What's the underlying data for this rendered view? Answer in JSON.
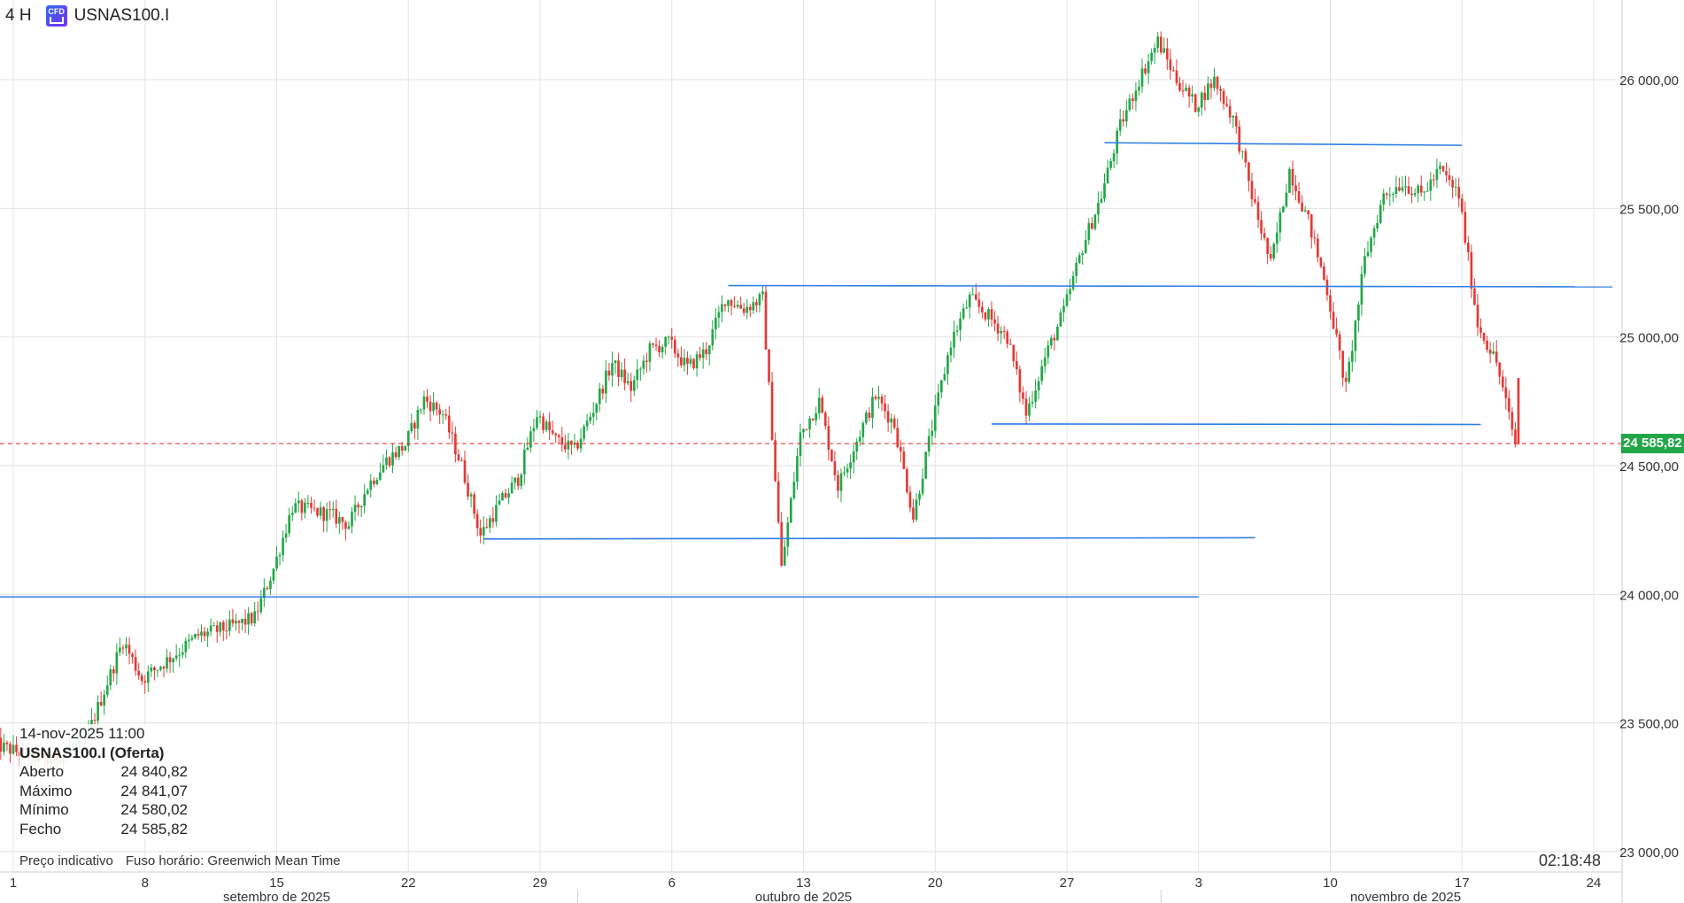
{
  "header": {
    "timeframe": "4 H",
    "cfd_badge": "CFD",
    "symbol": "USNAS100.I"
  },
  "info": {
    "datetime": "14-nov-2025 11:00",
    "symbol_label": "USNAS100.I (Oferta)",
    "rows": [
      {
        "label": "Aberto",
        "value": "24 840,82"
      },
      {
        "label": "Máximo",
        "value": "24 841,07"
      },
      {
        "label": "Mínimo",
        "value": "24 580,02"
      },
      {
        "label": "Fecho",
        "value": "24 585,82"
      }
    ]
  },
  "footer": {
    "note": "Preço indicativo",
    "timezone": "Fuso horário: Greenwich Mean Time",
    "clock": "02:18:48"
  },
  "colors": {
    "up": "#22a748",
    "down": "#e53935",
    "trendline": "#2f7ee3",
    "grid": "#e3e3e3",
    "price_line": "#e53935"
  },
  "chart_data": {
    "type": "candlestick",
    "timeframe": "4 H",
    "ylim": [
      22900,
      26300
    ],
    "y_ticks": [
      {
        "value": 23000,
        "label": "23 000,00"
      },
      {
        "value": 23500,
        "label": "23 500,00"
      },
      {
        "value": 24000,
        "label": "24 000,00"
      },
      {
        "value": 24500,
        "label": "24 500,00"
      },
      {
        "value": 25000,
        "label": "25 000,00"
      },
      {
        "value": 25500,
        "label": "25 500,00"
      },
      {
        "value": 26000,
        "label": "26 000,00"
      }
    ],
    "x_start": "2025-09-01",
    "x_end": "2025-11-24",
    "x_ticks": [
      {
        "date": "2025-09-01",
        "label": "1"
      },
      {
        "date": "2025-09-08",
        "label": "8"
      },
      {
        "date": "2025-09-15",
        "label": "15"
      },
      {
        "date": "2025-09-22",
        "label": "22"
      },
      {
        "date": "2025-09-29",
        "label": "29"
      },
      {
        "date": "2025-10-06",
        "label": "6"
      },
      {
        "date": "2025-10-13",
        "label": "13"
      },
      {
        "date": "2025-10-20",
        "label": "20"
      },
      {
        "date": "2025-10-27",
        "label": "27"
      },
      {
        "date": "2025-11-03",
        "label": "3"
      },
      {
        "date": "2025-11-10",
        "label": "10"
      },
      {
        "date": "2025-11-17",
        "label": "17"
      },
      {
        "date": "2025-11-24",
        "label": "24"
      }
    ],
    "month_labels": [
      {
        "date": "2025-09-15",
        "label": "setembro de 2025"
      },
      {
        "date": "2025-10-13",
        "label": "outubro de 2025"
      },
      {
        "date": "2025-11-14",
        "label": "novembro de 2025"
      }
    ],
    "month_boundaries": [
      "2025-10-01",
      "2025-11-01"
    ],
    "current_price": {
      "value": 24585.82,
      "label": "24 585,82"
    },
    "trendlines": [
      {
        "from": [
          "2025-08-31",
          23990
        ],
        "to": [
          "2025-11-03",
          23990
        ]
      },
      {
        "from": [
          "2025-09-26",
          24215
        ],
        "to": [
          "2025-11-06",
          24220
        ]
      },
      {
        "from": [
          "2025-10-09",
          25200
        ],
        "to": [
          "2025-11-25",
          25195
        ]
      },
      {
        "from": [
          "2025-10-23",
          24662
        ],
        "to": [
          "2025-11-18",
          24660
        ]
      },
      {
        "from": [
          "2025-10-29",
          25755
        ],
        "to": [
          "2025-11-17",
          25745
        ]
      }
    ],
    "anchors": [
      [
        "2025-08-31",
        23420
      ],
      [
        "2025-09-03",
        23350
      ],
      [
        "2025-09-05",
        23430
      ],
      [
        "2025-09-07",
        23820
      ],
      [
        "2025-09-08",
        23670
      ],
      [
        "2025-09-10",
        23780
      ],
      [
        "2025-09-11",
        23840
      ],
      [
        "2025-09-13",
        23880
      ],
      [
        "2025-09-14",
        23910
      ],
      [
        "2025-09-15",
        24100
      ],
      [
        "2025-09-16",
        24340
      ],
      [
        "2025-09-18",
        24310
      ],
      [
        "2025-09-19",
        24270
      ],
      [
        "2025-09-20",
        24420
      ],
      [
        "2025-09-21",
        24520
      ],
      [
        "2025-09-22",
        24580
      ],
      [
        "2025-09-23",
        24760
      ],
      [
        "2025-09-24",
        24700
      ],
      [
        "2025-09-25",
        24500
      ],
      [
        "2025-09-26",
        24230
      ],
      [
        "2025-09-27",
        24350
      ],
      [
        "2025-09-28",
        24450
      ],
      [
        "2025-09-29",
        24700
      ],
      [
        "2025-09-30",
        24600
      ],
      [
        "2025-10-01",
        24560
      ],
      [
        "2025-10-02",
        24720
      ],
      [
        "2025-10-03",
        24900
      ],
      [
        "2025-10-04",
        24800
      ],
      [
        "2025-10-05",
        24950
      ],
      [
        "2025-10-06",
        24980
      ],
      [
        "2025-10-07",
        24880
      ],
      [
        "2025-10-08",
        24950
      ],
      [
        "2025-10-09",
        25150
      ],
      [
        "2025-10-10",
        25110
      ],
      [
        "2025-10-11",
        25150
      ],
      [
        "2025-10-12",
        24100
      ],
      [
        "2025-10-13",
        24620
      ],
      [
        "2025-10-14",
        24750
      ],
      [
        "2025-10-15",
        24420
      ],
      [
        "2025-10-16",
        24600
      ],
      [
        "2025-10-17",
        24770
      ],
      [
        "2025-10-18",
        24660
      ],
      [
        "2025-10-19",
        24300
      ],
      [
        "2025-10-20",
        24650
      ],
      [
        "2025-10-21",
        24980
      ],
      [
        "2025-10-22",
        25150
      ],
      [
        "2025-10-23",
        25080
      ],
      [
        "2025-10-24",
        25000
      ],
      [
        "2025-10-25",
        24700
      ],
      [
        "2025-10-26",
        24920
      ],
      [
        "2025-10-27",
        25100
      ],
      [
        "2025-10-28",
        25350
      ],
      [
        "2025-10-29",
        25550
      ],
      [
        "2025-10-30",
        25820
      ],
      [
        "2025-10-31",
        26000
      ],
      [
        "2025-11-01",
        26150
      ],
      [
        "2025-11-02",
        26000
      ],
      [
        "2025-11-03",
        25900
      ],
      [
        "2025-11-04",
        26000
      ],
      [
        "2025-11-05",
        25850
      ],
      [
        "2025-11-06",
        25550
      ],
      [
        "2025-11-07",
        25280
      ],
      [
        "2025-11-08",
        25650
      ],
      [
        "2025-11-09",
        25450
      ],
      [
        "2025-11-10",
        25180
      ],
      [
        "2025-11-11",
        24800
      ],
      [
        "2025-11-12",
        25300
      ],
      [
        "2025-11-13",
        25550
      ],
      [
        "2025-11-14",
        25600
      ],
      [
        "2025-11-15",
        25550
      ],
      [
        "2025-11-16",
        25650
      ],
      [
        "2025-11-17",
        25550
      ],
      [
        "2025-11-18",
        25050
      ],
      [
        "2025-11-19",
        24900
      ],
      [
        "2025-11-20",
        24585.82
      ]
    ]
  }
}
